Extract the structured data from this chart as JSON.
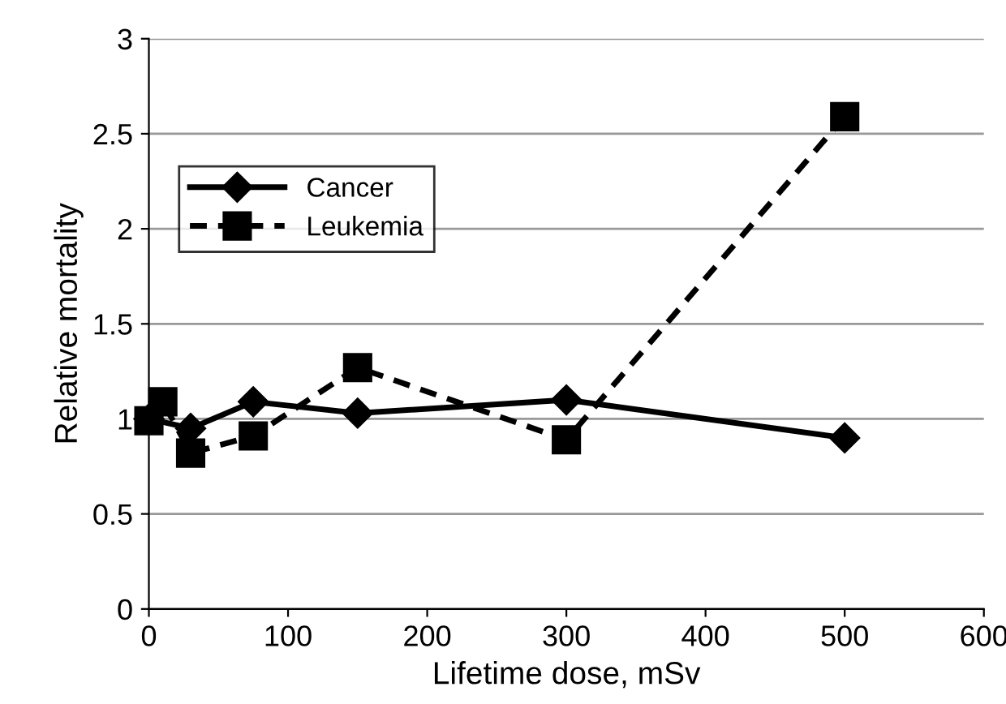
{
  "chart_data": {
    "type": "line",
    "xlabel": "Lifetime dose, mSv",
    "ylabel": "Relative mortality",
    "xlim": [
      0,
      600
    ],
    "xticks": [
      0,
      100,
      200,
      300,
      400,
      500,
      600
    ],
    "ylim": [
      0,
      3
    ],
    "yticks": [
      0,
      0.5,
      1,
      1.5,
      2,
      2.5,
      3
    ],
    "grid": "y",
    "legend": "top left",
    "series": [
      {
        "name": "Cancer",
        "color": "#000000",
        "marker": "diamond",
        "line_style": "solid",
        "x": [
          0,
          30,
          75,
          150,
          300,
          500
        ],
        "values": [
          1.0,
          0.95,
          1.09,
          1.03,
          1.1,
          0.9
        ]
      },
      {
        "name": "Leukemia",
        "color": "#000000",
        "marker": "square",
        "line_style": "dashed",
        "x": [
          0,
          10,
          30,
          75,
          150,
          300,
          500
        ],
        "values": [
          0.99,
          1.09,
          0.82,
          0.91,
          1.27,
          0.89,
          2.59
        ]
      }
    ]
  }
}
